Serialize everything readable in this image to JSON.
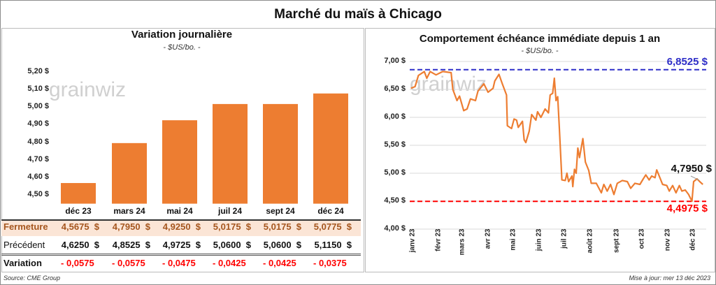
{
  "title": "Marché du maïs à Chicago",
  "footer": {
    "source": "Source: CME Group",
    "updated": "Mise à jour: mer 13 déc 2023"
  },
  "watermark": "grainwiz",
  "colors": {
    "bar": "#ED7D31",
    "line": "#ED7D31",
    "max_line": "#2E2EC8",
    "min_line": "#FF0000",
    "highlight_row": "#FBE5D6",
    "highlight_text": "#A5561E",
    "negative": "#FF0000"
  },
  "chart_data": [
    {
      "type": "bar",
      "title": "Variation journalière",
      "subtitle": "- $US/bo. -",
      "categories": [
        "déc 23",
        "mars 24",
        "mai 24",
        "juil 24",
        "sept 24",
        "déc 24"
      ],
      "values": [
        4.5675,
        4.795,
        4.925,
        5.0175,
        5.0175,
        5.0775
      ],
      "ylim": [
        4.45,
        5.25
      ],
      "yticks": [
        "4,50 $",
        "4,60 $",
        "4,70 $",
        "4,80 $",
        "4,90 $",
        "5,00 $",
        "5,10 $",
        "5,20 $"
      ],
      "ytick_values": [
        4.5,
        4.6,
        4.7,
        4.8,
        4.9,
        5.0,
        5.1,
        5.2
      ],
      "grid": false,
      "table": {
        "rows": [
          {
            "label": "Fermeture",
            "values": [
              "4,5675  $",
              "4,7950  $",
              "4,9250  $",
              "5,0175  $",
              "5,0175  $",
              "5,0775  $"
            ]
          },
          {
            "label": "Précédent",
            "values": [
              "4,6250  $",
              "4,8525  $",
              "4,9725  $",
              "5,0600  $",
              "5,0600  $",
              "5,1150  $"
            ]
          },
          {
            "label": "Variation",
            "values": [
              "- 0,0575",
              "- 0,0575",
              "- 0,0475",
              "- 0,0425",
              "- 0,0425",
              "- 0,0375"
            ]
          }
        ]
      }
    },
    {
      "type": "line",
      "title": "Comportement échéance immédiate depuis 1 an",
      "subtitle": "- $US/bo. -",
      "ylim": [
        4.0,
        7.0
      ],
      "yticks": [
        "4,00 $",
        "4,50 $",
        "5,00 $",
        "5,50 $",
        "6,00 $",
        "6,50 $",
        "7,00 $"
      ],
      "ytick_values": [
        4.0,
        4.5,
        5.0,
        5.5,
        6.0,
        6.5,
        7.0
      ],
      "grid": true,
      "xticks": [
        "janv 23",
        "févr 23",
        "mars 23",
        "avr 23",
        "mai 23",
        "juin 23",
        "juil 23",
        "août 23",
        "sept 23",
        "oct 23",
        "nov 23",
        "déc 23"
      ],
      "xtick_dates": [
        "2023-01-01",
        "2023-02-01",
        "2023-03-01",
        "2023-04-01",
        "2023-05-01",
        "2023-06-01",
        "2023-07-01",
        "2023-08-01",
        "2023-09-01",
        "2023-10-01",
        "2023-11-01",
        "2023-12-01"
      ],
      "max": {
        "value": 6.8525,
        "label": "6,8525 $"
      },
      "min": {
        "value": 4.4975,
        "label": "4,4975 $"
      },
      "last": {
        "value": 4.795,
        "label": "4,7950 $"
      },
      "points": [
        [
          "2022-12-30",
          6.52
        ],
        [
          "2023-01-04",
          6.55
        ],
        [
          "2023-01-08",
          6.75
        ],
        [
          "2023-01-15",
          6.82
        ],
        [
          "2023-01-18",
          6.7
        ],
        [
          "2023-01-22",
          6.82
        ],
        [
          "2023-01-29",
          6.76
        ],
        [
          "2023-02-06",
          6.82
        ],
        [
          "2023-02-16",
          6.8
        ],
        [
          "2023-02-18",
          6.5
        ],
        [
          "2023-02-23",
          6.3
        ],
        [
          "2023-02-26",
          6.38
        ],
        [
          "2023-03-03",
          6.12
        ],
        [
          "2023-03-07",
          6.15
        ],
        [
          "2023-03-11",
          6.33
        ],
        [
          "2023-03-17",
          6.3
        ],
        [
          "2023-03-20",
          6.47
        ],
        [
          "2023-03-27",
          6.6
        ],
        [
          "2023-04-01",
          6.45
        ],
        [
          "2023-04-07",
          6.52
        ],
        [
          "2023-04-09",
          6.65
        ],
        [
          "2023-04-14",
          6.77
        ],
        [
          "2023-04-18",
          6.6
        ],
        [
          "2023-04-23",
          6.4
        ],
        [
          "2023-04-24",
          5.85
        ],
        [
          "2023-04-29",
          5.8
        ],
        [
          "2023-05-02",
          5.97
        ],
        [
          "2023-05-05",
          5.95
        ],
        [
          "2023-05-07",
          5.82
        ],
        [
          "2023-05-12",
          5.93
        ],
        [
          "2023-05-14",
          5.6
        ],
        [
          "2023-05-16",
          5.55
        ],
        [
          "2023-05-20",
          5.75
        ],
        [
          "2023-05-23",
          6.05
        ],
        [
          "2023-05-28",
          5.95
        ],
        [
          "2023-05-30",
          6.1
        ],
        [
          "2023-06-03",
          6.0
        ],
        [
          "2023-06-08",
          6.15
        ],
        [
          "2023-06-12",
          6.08
        ],
        [
          "2023-06-14",
          6.4
        ],
        [
          "2023-06-17",
          6.43
        ],
        [
          "2023-06-19",
          6.7
        ],
        [
          "2023-06-21",
          6.3
        ],
        [
          "2023-06-23",
          6.37
        ],
        [
          "2023-06-25",
          5.8
        ],
        [
          "2023-06-28",
          4.88
        ],
        [
          "2023-07-02",
          4.87
        ],
        [
          "2023-07-04",
          5.0
        ],
        [
          "2023-07-06",
          4.85
        ],
        [
          "2023-07-10",
          4.95
        ],
        [
          "2023-07-11",
          4.76
        ],
        [
          "2023-07-13",
          5.07
        ],
        [
          "2023-07-15",
          5.0
        ],
        [
          "2023-07-17",
          5.45
        ],
        [
          "2023-07-19",
          5.28
        ],
        [
          "2023-07-23",
          5.62
        ],
        [
          "2023-07-26",
          5.2
        ],
        [
          "2023-07-30",
          5.05
        ],
        [
          "2023-08-02",
          4.82
        ],
        [
          "2023-08-08",
          4.82
        ],
        [
          "2023-08-14",
          4.65
        ],
        [
          "2023-08-17",
          4.8
        ],
        [
          "2023-08-21",
          4.68
        ],
        [
          "2023-08-25",
          4.8
        ],
        [
          "2023-08-29",
          4.62
        ],
        [
          "2023-09-02",
          4.82
        ],
        [
          "2023-09-08",
          4.87
        ],
        [
          "2023-09-14",
          4.85
        ],
        [
          "2023-09-18",
          4.73
        ],
        [
          "2023-09-23",
          4.82
        ],
        [
          "2023-09-29",
          4.8
        ],
        [
          "2023-10-03",
          4.9
        ],
        [
          "2023-10-06",
          4.97
        ],
        [
          "2023-10-10",
          4.88
        ],
        [
          "2023-10-13",
          4.95
        ],
        [
          "2023-10-17",
          4.92
        ],
        [
          "2023-10-19",
          5.06
        ],
        [
          "2023-10-22",
          4.95
        ],
        [
          "2023-10-26",
          4.8
        ],
        [
          "2023-10-31",
          4.78
        ],
        [
          "2023-11-03",
          4.68
        ],
        [
          "2023-11-07",
          4.78
        ],
        [
          "2023-11-11",
          4.65
        ],
        [
          "2023-11-15",
          4.78
        ],
        [
          "2023-11-18",
          4.68
        ],
        [
          "2023-11-22",
          4.7
        ],
        [
          "2023-11-26",
          4.62
        ],
        [
          "2023-11-30",
          4.5
        ],
        [
          "2023-12-02",
          4.85
        ],
        [
          "2023-12-06",
          4.9
        ],
        [
          "2023-12-10",
          4.84
        ],
        [
          "2023-12-13",
          4.8
        ]
      ]
    }
  ]
}
